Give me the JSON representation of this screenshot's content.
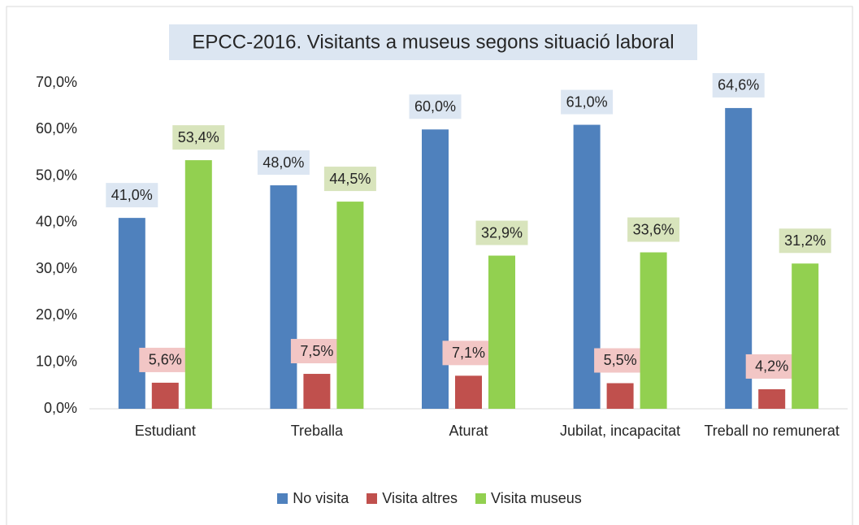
{
  "chart_data": {
    "type": "bar",
    "title": "EPCC-2016. Visitants a museus segons situació laboral",
    "categories": [
      "Estudiant",
      "Treballa",
      "Aturat",
      "Jubilat, incapacitat",
      "Treball no remunerat"
    ],
    "series": [
      {
        "name": "No visita",
        "color": "#4f81bd",
        "label_bg": "#dce6f2",
        "values": [
          41.0,
          48.0,
          60.0,
          61.0,
          64.6
        ],
        "value_labels": [
          "41,0%",
          "48,0%",
          "60,0%",
          "61,0%",
          "64,6%"
        ]
      },
      {
        "name": "Visita altres",
        "color": "#c0504d",
        "label_bg": "#f2c6c5",
        "values": [
          5.6,
          7.5,
          7.1,
          5.5,
          4.2
        ],
        "value_labels": [
          "5,6%",
          "7,5%",
          "7,1%",
          "5,5%",
          "4,2%"
        ]
      },
      {
        "name": "Visita museus",
        "color": "#92d050",
        "label_bg": "#d8e4bc",
        "values": [
          53.4,
          44.5,
          32.9,
          33.6,
          31.2
        ],
        "value_labels": [
          "53,4%",
          "44,5%",
          "32,9%",
          "33,6%",
          "31,2%"
        ]
      }
    ],
    "ylim": [
      0,
      70
    ],
    "yticks": [
      {
        "value": 0,
        "label": "0,0%"
      },
      {
        "value": 10,
        "label": "10,0%"
      },
      {
        "value": 20,
        "label": "20,0%"
      },
      {
        "value": 30,
        "label": "30,0%"
      },
      {
        "value": 40,
        "label": "40,0%"
      },
      {
        "value": 50,
        "label": "50,0%"
      },
      {
        "value": 60,
        "label": "60,0%"
      },
      {
        "value": 70,
        "label": "70,0%"
      }
    ],
    "legend": "bottom"
  }
}
